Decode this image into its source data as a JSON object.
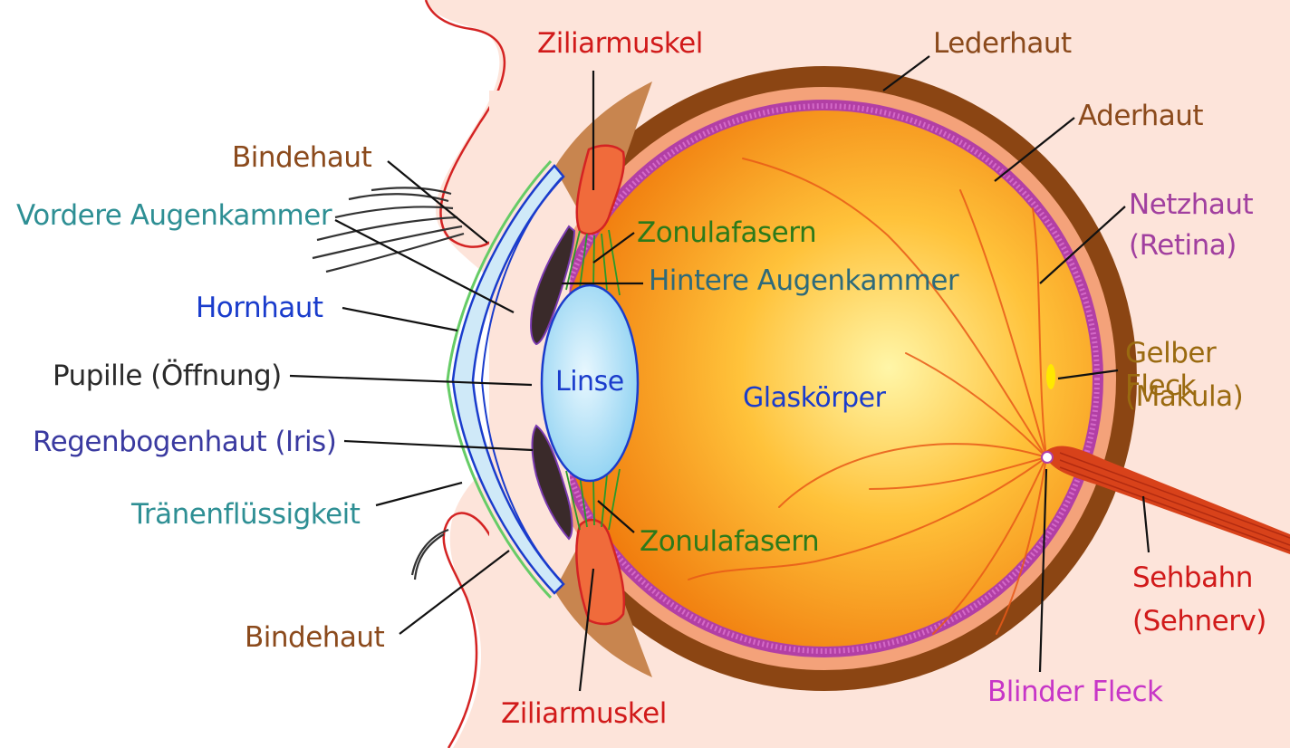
{
  "labels": {
    "ziliarmuskel_top": "Ziliarmuskel",
    "lederhaut": "Lederhaut",
    "aderhaut": "Aderhaut",
    "bindehaut_top": "Bindehaut",
    "netzhaut_1": "Netzhaut",
    "netzhaut_2": "(Retina)",
    "vordere_augenkammer": "Vordere Augenkammer",
    "zonulafasern_top": "Zonulafasern",
    "hintere_augenkammer": "Hintere Augenkammer",
    "hornhaut": "Hornhaut",
    "gelber_fleck_1": "Gelber Fleck",
    "gelber_fleck_2": "(Makula)",
    "pupille": "Pupille (Öffnung)",
    "linse": "Linse",
    "glaskoerper": "Glaskörper",
    "regenbogenhaut": "Regenbogenhaut (Iris)",
    "traenenfluessigkeit": "Tränenflüssigkeit",
    "zonulafasern_bottom": "Zonulafasern",
    "sehbahn_1": "Sehbahn",
    "sehbahn_2": "(Sehnerv)",
    "bindehaut_bottom": "Bindehaut",
    "blinder_fleck": "Blinder Fleck",
    "ziliarmuskel_bottom": "Ziliarmuskel"
  },
  "colors": {
    "skin": "#fde4da",
    "eyelid_line": "#d42323",
    "sclera": "#8b4513",
    "choroid": "#f4a27a",
    "retina": "#b23fa5",
    "vitreous_center": "#fff3a0",
    "vitreous_edge": "#f08010",
    "cornea": "#cfe9f8",
    "cornea_line": "#1a3ccc",
    "lens": "#b6e3f8",
    "iris": "#3a2a2a",
    "ciliary": "#f06b3b",
    "zonula": "#2a9a2a",
    "optic_nerve": "#d8421a",
    "macula": "#ffe800",
    "label_brown": "#8b4a1c",
    "label_red": "#d11a1a",
    "label_teal": "#2e8f94",
    "label_blue": "#1a3ccc",
    "label_green": "#2c7a1a",
    "label_darkteal": "#2e6a7a",
    "label_black": "#2a2a2a",
    "label_indigo": "#3a3aa0",
    "label_purple": "#a13f9f",
    "label_gold": "#9a6a10",
    "label_magenta": "#c736c7"
  }
}
